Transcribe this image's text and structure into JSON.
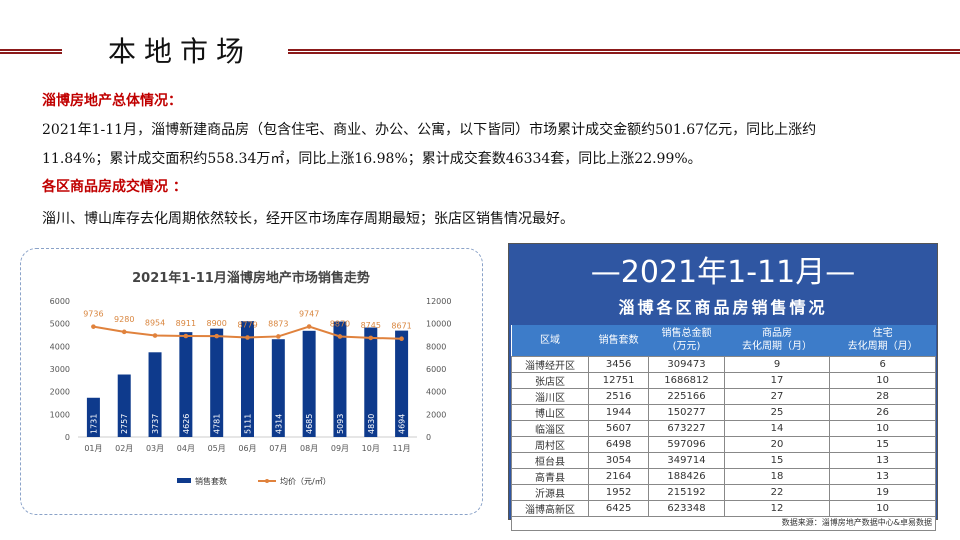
{
  "header": {
    "title": "本地市场"
  },
  "overview": {
    "heading": "淄博房地产总体情况：",
    "line1": "2021年1-11月，淄博新建商品房（包含住宅、商业、办公、公寓，以下皆同）市场累计成交金额约501.67亿元，同比上涨约",
    "line2": "11.84%；累计成交面积约558.34万㎡，同比上涨16.98%；累计成交套数46334套，同比上涨22.99%。"
  },
  "districts": {
    "heading": "各区商品房成交情况 ：",
    "line": "淄川、博山库存去化周期依然较长，经开区市场库存周期最短；张店区销售情况最好。"
  },
  "chart_data": {
    "type": "bar+line",
    "title": "2021年1-11月淄博房地产市场销售走势",
    "categories": [
      "01月",
      "02月",
      "03月",
      "04月",
      "05月",
      "06月",
      "07月",
      "08月",
      "09月",
      "10月",
      "11月"
    ],
    "series": [
      {
        "name": "销售套数",
        "type": "bar",
        "axis": "left",
        "color": "#0e3a8c",
        "values": [
          1731,
          2757,
          3737,
          4626,
          4781,
          5111,
          4314,
          4685,
          5093,
          4830,
          4694
        ]
      },
      {
        "name": "均价（元/㎡）",
        "type": "line",
        "axis": "right",
        "color": "#e0823d",
        "values": [
          9736,
          9280,
          8954,
          8911,
          8900,
          8779,
          8873,
          9747,
          8870,
          8745,
          8671
        ]
      }
    ],
    "ylim_left": [
      0,
      6000
    ],
    "ylim_right": [
      0,
      12000
    ],
    "yticks_left": [
      "0",
      "1000",
      "2000",
      "3000",
      "4000",
      "5000",
      "6000"
    ],
    "yticks_right": [
      "0",
      "2000",
      "4000",
      "6000",
      "8000",
      "10000",
      "12000"
    ],
    "legend": "bottom"
  },
  "table": {
    "title_line1": "—2021年1-11月—",
    "title_line2": "淄博各区商品房销售情况",
    "headers": [
      "区域",
      "销售套数",
      "销售总金额\n(万元)",
      "商品房\n去化周期（月）",
      "住宅\n去化周期（月）"
    ],
    "rows": [
      [
        "淄博经开区",
        "3456",
        "309473",
        "9",
        "6"
      ],
      [
        "张店区",
        "12751",
        "1686812",
        "17",
        "10"
      ],
      [
        "淄川区",
        "2516",
        "225166",
        "27",
        "28"
      ],
      [
        "博山区",
        "1944",
        "150277",
        "25",
        "26"
      ],
      [
        "临淄区",
        "5607",
        "673227",
        "14",
        "10"
      ],
      [
        "周村区",
        "6498",
        "597096",
        "20",
        "15"
      ],
      [
        "桓台县",
        "3054",
        "349714",
        "15",
        "13"
      ],
      [
        "高青县",
        "2164",
        "188426",
        "18",
        "13"
      ],
      [
        "沂源县",
        "1952",
        "215192",
        "22",
        "19"
      ],
      [
        "淄博高新区",
        "6425",
        "623348",
        "12",
        "10"
      ]
    ],
    "source": "数据来源：淄博房地产数据中心&卓易数据"
  }
}
